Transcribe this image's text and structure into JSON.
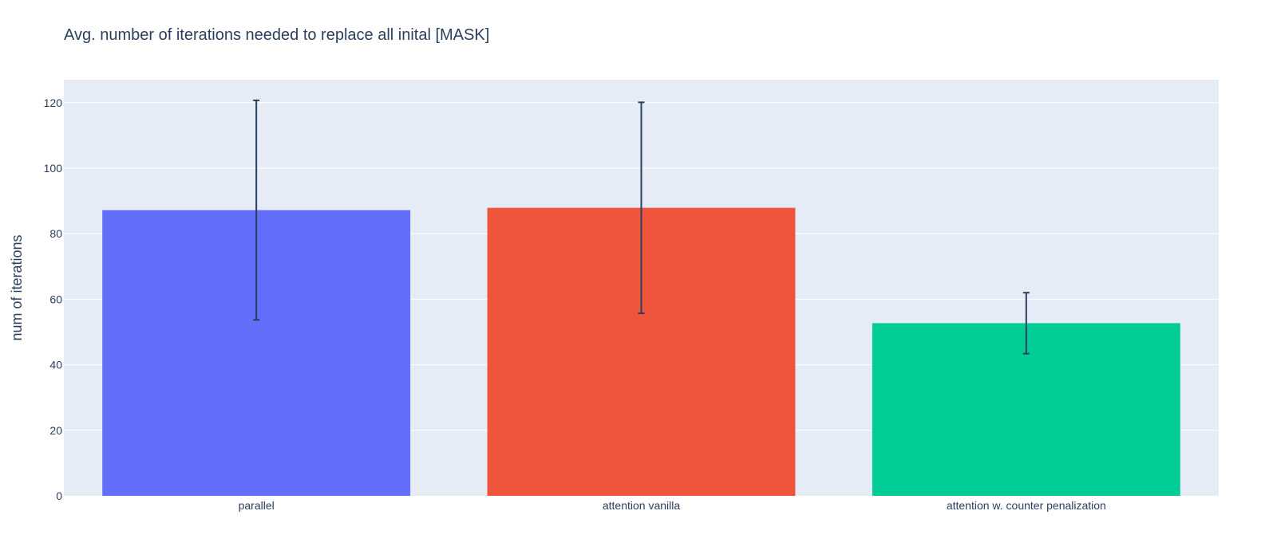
{
  "chart_data": {
    "type": "bar",
    "title": "Avg. number of iterations needed to replace all inital [MASK]",
    "xlabel": "",
    "ylabel": "num of iterations",
    "ylim": [
      0,
      127
    ],
    "yticks": [
      0,
      20,
      40,
      60,
      80,
      100,
      120
    ],
    "grid": true,
    "categories": [
      "parallel",
      "attention vanilla",
      "attention w. counter penalization"
    ],
    "values": [
      87.2,
      87.9,
      52.7
    ],
    "error": [
      33.5,
      32.2,
      9.3
    ],
    "colors": [
      "#636efa",
      "#ef553b",
      "#00cc96"
    ],
    "plot_background": "#e5ecf6",
    "error_bar_color": "#2a3f5f"
  }
}
